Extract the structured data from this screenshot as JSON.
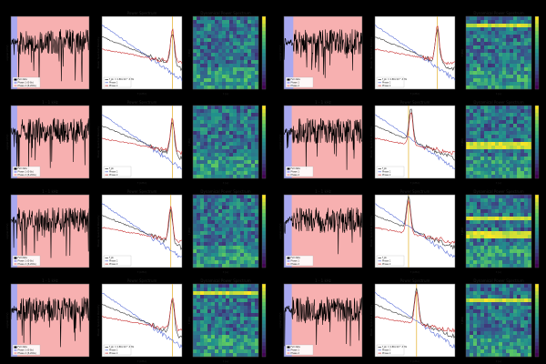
{
  "figure": {
    "background": "#000000",
    "panel_background": "#ffffff",
    "colors": {
      "trace": "#000000",
      "phase1_shade": "#a8a8f0",
      "phase2_shade": "#f7b0b0",
      "full_series": "#3a3a3a",
      "phase1_line": "#5a6fd8",
      "phase2_line": "#c83232",
      "fit_line": "#e6b840",
      "heatmap_low": "#440154",
      "heatmap_mid": "#21918c",
      "heatmap_high": "#fde725"
    },
    "colormap": "viridis",
    "icons": {
      "colorbar": "viridis-colorbar-icon"
    }
  },
  "chart_data": [
    {
      "type": "line",
      "block": 1,
      "trace": {
        "title": "",
        "xlabel": "",
        "ylabel": "signal (mV)",
        "phase1_end": 0.08,
        "legend": [
          "Full data",
          "Phase 1 (0-8s)",
          "Phase 2 (8-200s)"
        ]
      },
      "psd": {
        "title": "Power Spectrum",
        "xlabel": "f (kHz)",
        "ylabel": "Power Spectral Density",
        "legend": [
          "f_pk = 2.86×10^-3 Hz",
          "Phase 1",
          "Phase 2"
        ],
        "peak_x": 0.88,
        "fit_x": 0.88
      },
      "heatmap": {
        "title": "Dynamical Power Spectrum",
        "xlabel": "t (s)",
        "ylabel": "f (Hz)",
        "bright_rows": []
      }
    },
    {
      "type": "line",
      "block": 2,
      "trace": {
        "title": "",
        "xlabel": "",
        "ylabel": "signal (mV)",
        "phase1_end": 0.12,
        "legend": [
          "Full data",
          "Phase 1",
          "Phase 2"
        ]
      },
      "psd": {
        "title": "",
        "xlabel": "f (kHz)",
        "ylabel": "Power Spectral Density",
        "legend": [
          "f_pk = 2.86×10^-3 Hz",
          "Phase 1",
          "Phase 2"
        ],
        "peak_x": 0.78,
        "fit_x": 0.78
      },
      "heatmap": {
        "title": "Dynamical Power Spectrum",
        "xlabel": "t (s)",
        "ylabel": "f (Hz)",
        "bright_rows": [
          0.12
        ]
      }
    },
    {
      "type": "line",
      "block": 3,
      "trace": {
        "title": "1 - 1 kHz",
        "xlabel": "",
        "ylabel": "signal (mV)",
        "phase1_end": 0.08,
        "legend": [
          "Full data",
          "Phase 1 (0-8s)",
          "Phase 2 (8-200s)"
        ]
      },
      "psd": {
        "title": "Power Spectrum",
        "xlabel": "f (kHz)",
        "ylabel": "Power Spectral Density",
        "legend": [
          "f_pk",
          "Phase 1",
          "Phase 2"
        ],
        "peak_x": 0.88,
        "fit_x": 0.88
      },
      "heatmap": {
        "title": "",
        "xlabel": "t (s)",
        "ylabel": "f (Hz)",
        "bright_rows": []
      }
    },
    {
      "type": "line",
      "block": 4,
      "trace": {
        "title": "1 - 1 kHz",
        "xlabel": "",
        "ylabel": "signal (mV)",
        "phase1_end": 0.1,
        "legend": [
          "Full data",
          "Phase 1",
          "Phase 2"
        ]
      },
      "psd": {
        "title": "Power Spectrum",
        "xlabel": "f (kHz)",
        "ylabel": "Power Spectral Density",
        "legend": [
          "f_pk",
          "Phase 1",
          "Phase 2"
        ],
        "peak_x": 0.45,
        "fit_x": 0.42
      },
      "heatmap": {
        "title": "Dynamical Power Spectrum",
        "xlabel": "t (s)",
        "ylabel": "f (Hz)",
        "bright_rows": [
          0.55
        ]
      }
    },
    {
      "type": "line",
      "block": 5,
      "trace": {
        "title": "1 - 1 kHz",
        "xlabel": "",
        "ylabel": "signal (mV)",
        "phase1_end": 0.08,
        "legend": [
          "Full data",
          "Phase 1 (0-8s)",
          "Phase 2 (8-200s)"
        ]
      },
      "psd": {
        "title": "Power Spectrum",
        "xlabel": "f (kHz)",
        "ylabel": "Power Spectral Density",
        "legend": [
          "f_pk",
          "Phase 1",
          "Phase 2"
        ],
        "peak_x": 0.86,
        "fit_x": 0.86
      },
      "heatmap": {
        "title": "Dynamical Power Spectrum",
        "xlabel": "t (s)",
        "ylabel": "f (Hz)",
        "bright_rows": []
      }
    },
    {
      "type": "line",
      "block": 6,
      "trace": {
        "title": "1 - 1 kHz",
        "xlabel": "",
        "ylabel": "signal (mV)",
        "phase1_end": 0.1,
        "legend": [
          "Full data",
          "Phase 1",
          "Phase 2"
        ]
      },
      "psd": {
        "title": "Power Spectrum",
        "xlabel": "f (kHz)",
        "ylabel": "Power Spectral Density",
        "legend": [
          "f_pk",
          "Phase 1",
          "Phase 2"
        ],
        "peak_x": 0.42,
        "fit_x": 0.42
      },
      "heatmap": {
        "title": "Dynamical Power Spectrum",
        "xlabel": "t (s)",
        "ylabel": "f (Hz)",
        "bright_rows": [
          0.3,
          0.55
        ]
      }
    },
    {
      "type": "line",
      "block": 7,
      "trace": {
        "title": "1 - 1 kHz",
        "xlabel": "",
        "ylabel": "signal (mV)",
        "phase1_end": 0.08,
        "legend": [
          "Full data",
          "Phase 1 (0-8s)",
          "Phase 2 (8-200s)"
        ]
      },
      "psd": {
        "title": "Power Spectrum",
        "xlabel": "f (kHz)",
        "ylabel": "Power Spectral Density",
        "legend": [
          "f_pk = 2.86×10^-3 Hz",
          "Phase 1",
          "Phase 2"
        ],
        "peak_x": 0.88,
        "fit_x": 0.88
      },
      "heatmap": {
        "title": "Dynamical Power Spectrum",
        "xlabel": "t (s)",
        "ylabel": "f (Hz)",
        "bright_rows": [
          0.12
        ]
      }
    },
    {
      "type": "line",
      "block": 8,
      "trace": {
        "title": "1 - 1 kHz",
        "xlabel": "",
        "ylabel": "signal (mV)",
        "phase1_end": 0.1,
        "legend": [
          "Full data",
          "Phase 1",
          "Phase 2"
        ]
      },
      "psd": {
        "title": "Power Spectrum",
        "xlabel": "f (kHz)",
        "ylabel": "Power Spectral Density",
        "legend": [
          "f_pk = 2.86×10^-3 Hz",
          "Phase 1",
          "Phase 2"
        ],
        "peak_x": 0.52,
        "fit_x": 0.52
      },
      "heatmap": {
        "title": "Dynamical Power Spectrum",
        "xlabel": "t (s)",
        "ylabel": "f (Hz)",
        "bright_rows": [
          0.2
        ]
      }
    }
  ]
}
